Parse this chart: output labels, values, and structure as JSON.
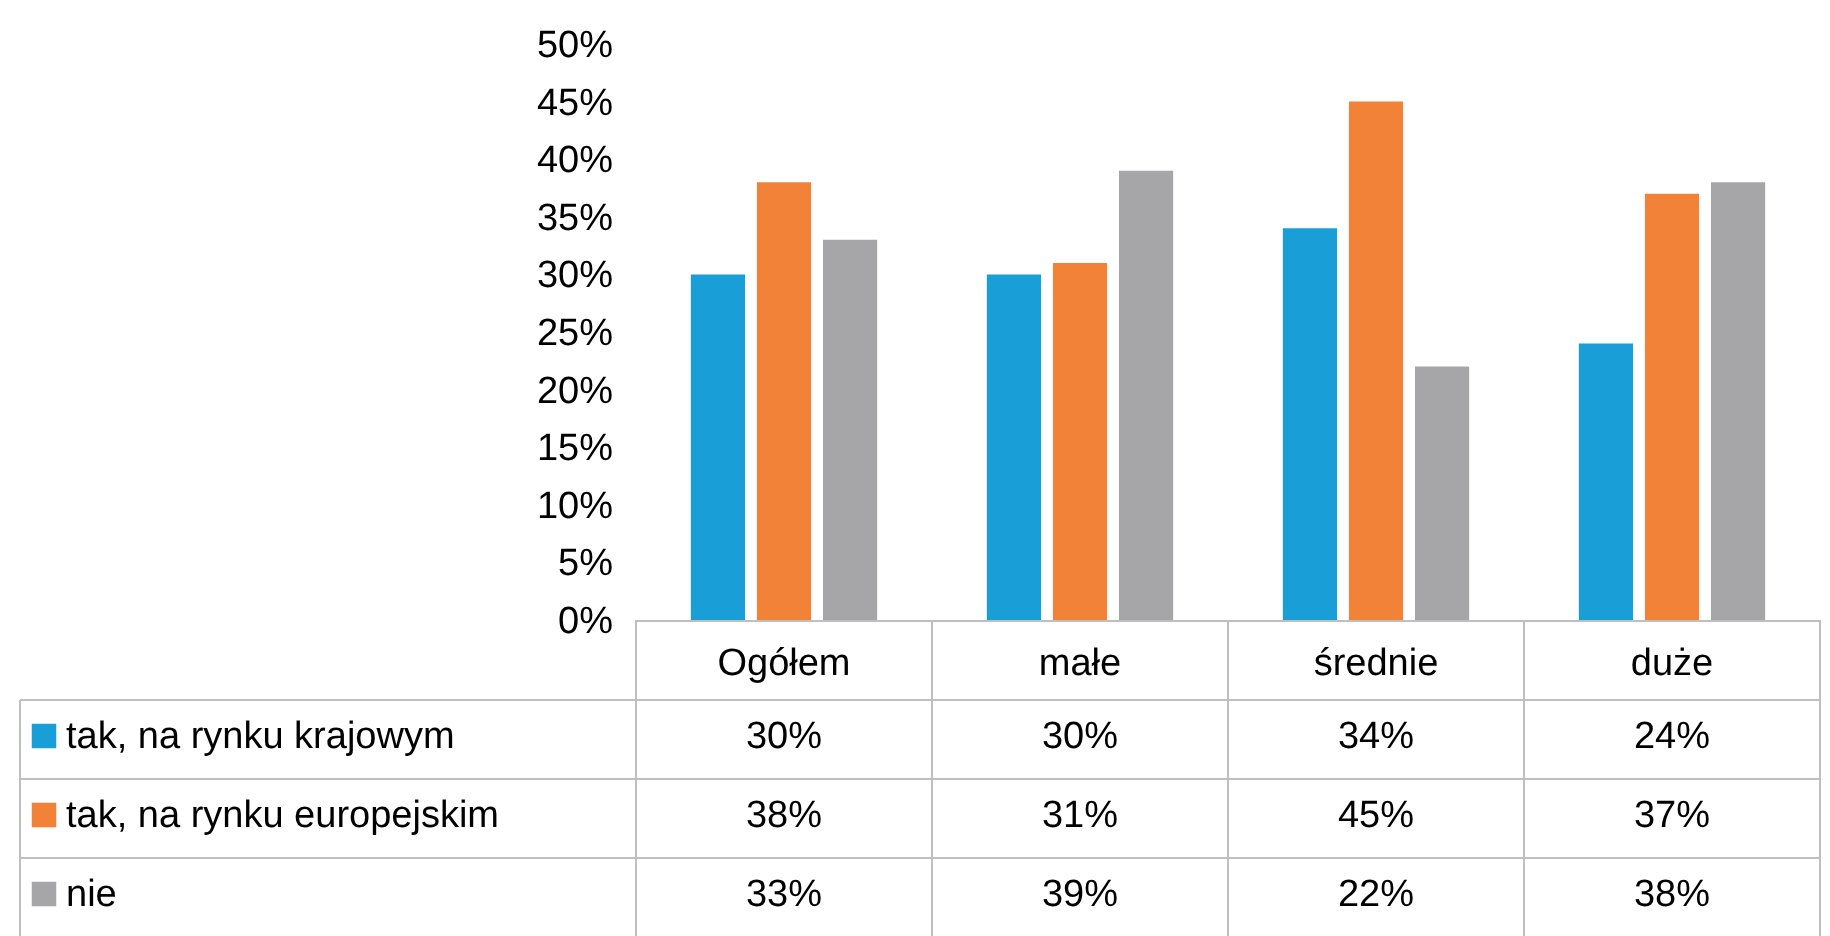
{
  "chart_data": {
    "type": "bar",
    "categories": [
      "Ogółem",
      "małe",
      "średnie",
      "duże"
    ],
    "series": [
      {
        "name": "tak, na rynku krajowym",
        "color": "#199ed8",
        "values": [
          30,
          30,
          34,
          24
        ],
        "value_labels": [
          "30%",
          "30%",
          "34%",
          "24%"
        ]
      },
      {
        "name": "tak, na rynku europejskim",
        "color": "#f28238",
        "values": [
          38,
          31,
          45,
          37
        ],
        "value_labels": [
          "38%",
          "31%",
          "45%",
          "37%"
        ]
      },
      {
        "name": "nie",
        "color": "#a6a6a9",
        "values": [
          33,
          39,
          22,
          38
        ],
        "value_labels": [
          "33%",
          "39%",
          "22%",
          "38%"
        ]
      }
    ],
    "ylim": [
      0,
      50
    ],
    "yticks": [
      {
        "value": 0,
        "label": "0%"
      },
      {
        "value": 5,
        "label": "5%"
      },
      {
        "value": 10,
        "label": "10%"
      },
      {
        "value": 15,
        "label": "15%"
      },
      {
        "value": 20,
        "label": "20%"
      },
      {
        "value": 25,
        "label": "25%"
      },
      {
        "value": 30,
        "label": "30%"
      },
      {
        "value": 35,
        "label": "35%"
      },
      {
        "value": 40,
        "label": "40%"
      },
      {
        "value": 45,
        "label": "45%"
      },
      {
        "value": 50,
        "label": "50%"
      }
    ],
    "grid": false,
    "legend": "bottom"
  }
}
